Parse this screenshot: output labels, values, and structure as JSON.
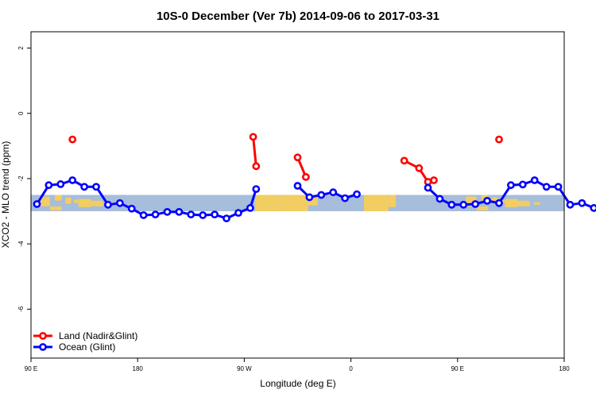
{
  "chart_data": {
    "type": "line",
    "title": "10S-0 December (Ver 7b)   2014-09-06 to 2017-03-31",
    "xlabel": "Longitude (deg E)",
    "ylabel": "XCO2 - MLO trend (ppm)",
    "xlim": [
      90,
      540
    ],
    "ylim": [
      -7.5,
      2.5
    ],
    "x_ticks": [
      {
        "value": 90,
        "label": "90 E"
      },
      {
        "value": 180,
        "label": "180"
      },
      {
        "value": 270,
        "label": "90 W"
      },
      {
        "value": 360,
        "label": "0"
      },
      {
        "value": 450,
        "label": "90 E"
      },
      {
        "value": 540,
        "label": "180"
      }
    ],
    "y_ticks": [
      {
        "value": 2,
        "label": "2"
      },
      {
        "value": 0,
        "label": "0"
      },
      {
        "value": -2,
        "label": "-2"
      },
      {
        "value": -4,
        "label": "-4"
      },
      {
        "value": -6,
        "label": "-6"
      }
    ],
    "map_band": {
      "lat_range": [
        -10,
        0
      ],
      "y_range": [
        -3.0,
        -2.5
      ]
    },
    "legend_position": "bottom-left",
    "series": [
      {
        "name": "Land (Nadir&Glint)",
        "color": "#ff0000",
        "segments": [
          [
            [
              125,
              -0.8
            ]
          ],
          [
            [
              277.5,
              -0.72
            ],
            [
              280,
              -1.62
            ]
          ],
          [
            [
              315,
              -1.35
            ],
            [
              322,
              -1.95
            ]
          ],
          [
            [
              405,
              -1.45
            ],
            [
              417.5,
              -1.68
            ],
            [
              425,
              -2.1
            ],
            [
              430,
              -2.05
            ]
          ],
          [
            [
              485,
              -0.8
            ]
          ]
        ]
      },
      {
        "name": "Ocean (Glint)",
        "color": "#0000ff",
        "segments": [
          [
            [
              95,
              -2.78
            ],
            [
              105,
              -2.2
            ],
            [
              115,
              -2.17
            ],
            [
              125,
              -2.05
            ],
            [
              135,
              -2.25
            ],
            [
              145,
              -2.25
            ],
            [
              155,
              -2.8
            ],
            [
              165,
              -2.75
            ],
            [
              175,
              -2.92
            ],
            [
              185,
              -3.12
            ],
            [
              195,
              -3.1
            ],
            [
              205,
              -3.02
            ],
            [
              215,
              -3.02
            ],
            [
              225,
              -3.1
            ],
            [
              235,
              -3.12
            ],
            [
              245,
              -3.1
            ],
            [
              255,
              -3.22
            ],
            [
              265,
              -3.05
            ],
            [
              275,
              -2.9
            ],
            [
              280,
              -2.32
            ]
          ],
          [
            [
              315,
              -2.22
            ],
            [
              325,
              -2.57
            ],
            [
              335,
              -2.5
            ],
            [
              345,
              -2.42
            ],
            [
              355,
              -2.6
            ],
            [
              365,
              -2.48
            ]
          ],
          [
            [
              425,
              -2.28
            ],
            [
              435,
              -2.62
            ],
            [
              445,
              -2.8
            ],
            [
              455,
              -2.8
            ],
            [
              465,
              -2.78
            ],
            [
              475,
              -2.68
            ],
            [
              485,
              -2.75
            ],
            [
              495,
              -2.2
            ],
            [
              505,
              -2.18
            ],
            [
              515,
              -2.05
            ],
            [
              525,
              -2.25
            ],
            [
              535,
              -2.25
            ],
            [
              545,
              -2.8
            ],
            [
              555,
              -2.75
            ],
            [
              565,
              -2.9
            ]
          ]
        ]
      }
    ]
  }
}
